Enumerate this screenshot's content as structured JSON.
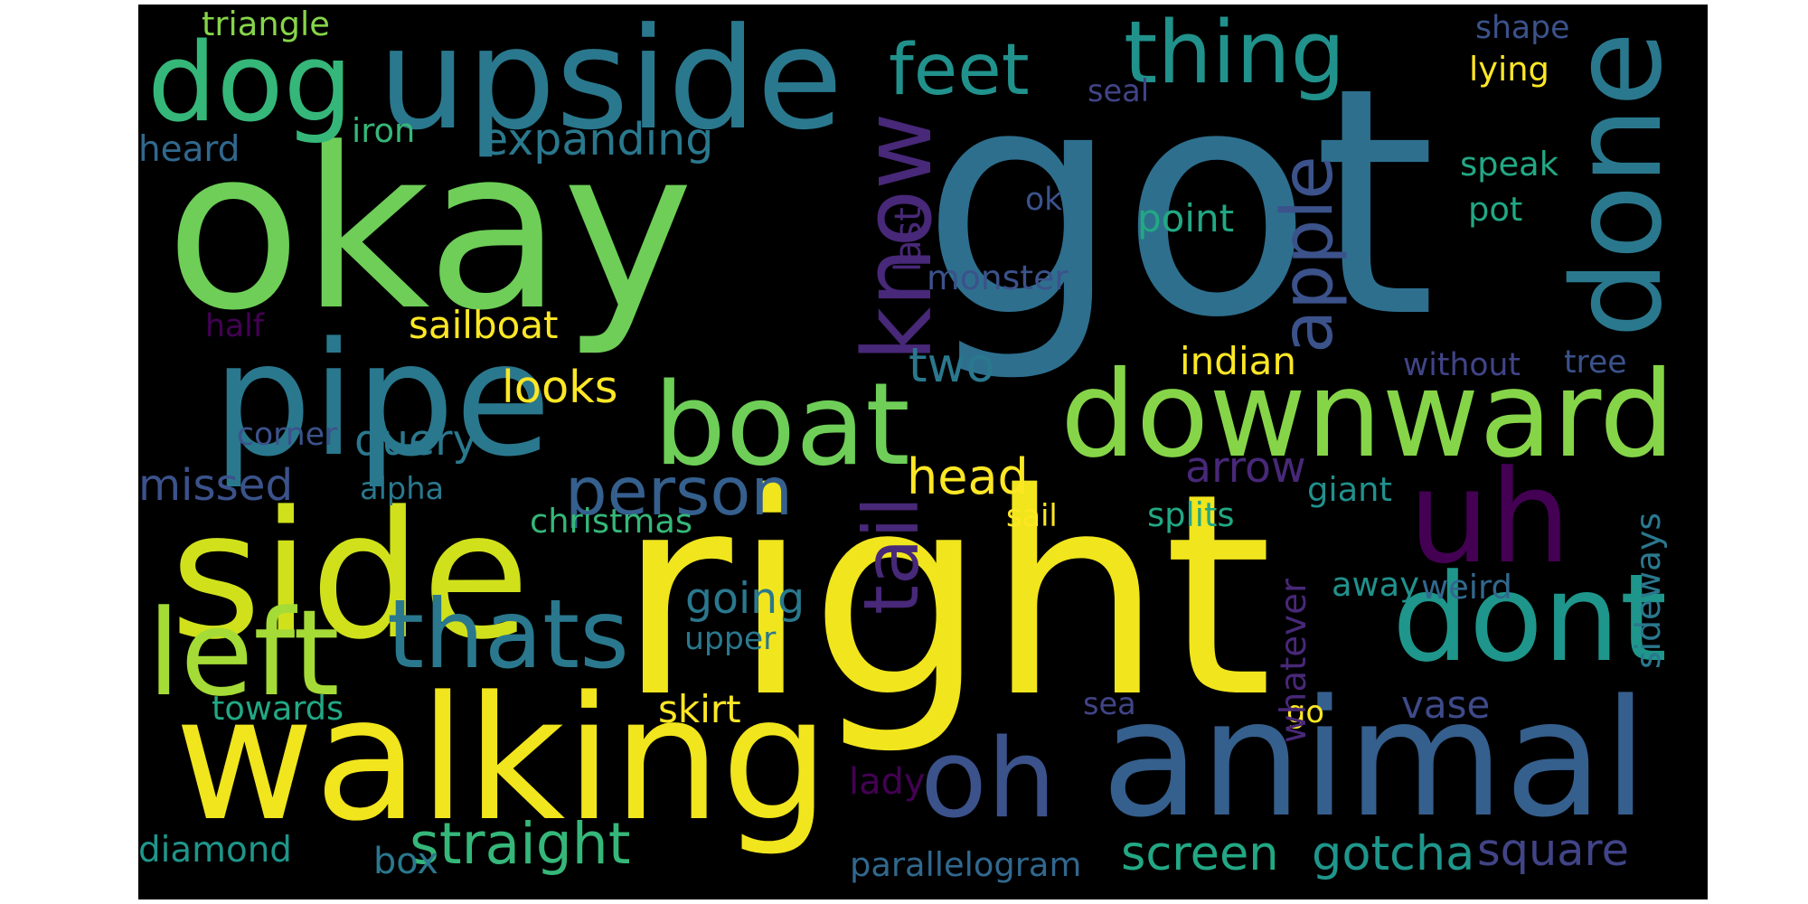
{
  "background_color": "#000000",
  "words": [
    {
      "text": "got",
      "color": "#2e6f8e"
    },
    {
      "text": "right",
      "color": "#f1e51d"
    },
    {
      "text": "okay",
      "color": "#6ece58"
    },
    {
      "text": "upside",
      "color": "#2a788e"
    },
    {
      "text": "side",
      "color": "#d0e11c"
    },
    {
      "text": "walking",
      "color": "#f1e51d"
    },
    {
      "text": "pipe",
      "color": "#2a788e"
    },
    {
      "text": "downward",
      "color": "#86d549"
    },
    {
      "text": "animal",
      "color": "#355f8d"
    },
    {
      "text": "dont",
      "color": "#1f968b"
    },
    {
      "text": "uh",
      "color": "#440154"
    },
    {
      "text": "boat",
      "color": "#6ece58"
    },
    {
      "text": "done",
      "color": "#2a788e"
    },
    {
      "text": "dog",
      "color": "#35b779"
    },
    {
      "text": "know",
      "color": "#482878"
    },
    {
      "text": "left",
      "color": "#a5db36"
    },
    {
      "text": "thats",
      "color": "#2a788e"
    },
    {
      "text": "oh",
      "color": "#3b528b"
    },
    {
      "text": "thing",
      "color": "#21918c"
    },
    {
      "text": "feet",
      "color": "#21918c"
    },
    {
      "text": "apple",
      "color": "#3b528b"
    },
    {
      "text": "tail",
      "color": "#482878"
    },
    {
      "text": "person",
      "color": "#355f8d"
    },
    {
      "text": "head",
      "color": "#fde725"
    },
    {
      "text": "straight",
      "color": "#35b779"
    },
    {
      "text": "gotcha",
      "color": "#1f968b"
    },
    {
      "text": "screen",
      "color": "#22a884"
    },
    {
      "text": "square",
      "color": "#414487"
    },
    {
      "text": "two",
      "color": "#2a788e"
    },
    {
      "text": "expanding",
      "color": "#2a788e"
    },
    {
      "text": "looks",
      "color": "#fde725"
    },
    {
      "text": "query",
      "color": "#2a788e"
    },
    {
      "text": "missed",
      "color": "#3b528b"
    },
    {
      "text": "arrow",
      "color": "#482878"
    },
    {
      "text": "indian",
      "color": "#fde725"
    },
    {
      "text": "point",
      "color": "#22a884"
    },
    {
      "text": "monster",
      "color": "#3b528b"
    },
    {
      "text": "going",
      "color": "#2a788e"
    },
    {
      "text": "sailboat",
      "color": "#fde725"
    },
    {
      "text": "christmas",
      "color": "#35b779"
    },
    {
      "text": "splits",
      "color": "#22a884"
    },
    {
      "text": "giant",
      "color": "#21918c"
    },
    {
      "text": "weird",
      "color": "#31688e"
    },
    {
      "text": "vase",
      "color": "#3e4a89"
    },
    {
      "text": "diamond",
      "color": "#1f968b"
    },
    {
      "text": "parallelogram",
      "color": "#31688e"
    },
    {
      "text": "skirt",
      "color": "#fde725"
    },
    {
      "text": "towards",
      "color": "#22a884"
    },
    {
      "text": "lady",
      "color": "#440154"
    },
    {
      "text": "box",
      "color": "#2a788e"
    },
    {
      "text": "sea",
      "color": "#414487"
    },
    {
      "text": "go",
      "color": "#fde725"
    },
    {
      "text": "away",
      "color": "#21918c"
    },
    {
      "text": "upper",
      "color": "#2a788e"
    },
    {
      "text": "sail",
      "color": "#fde725"
    },
    {
      "text": "alpha",
      "color": "#2a788e"
    },
    {
      "text": "corner",
      "color": "#3b528b"
    },
    {
      "text": "half",
      "color": "#440154"
    },
    {
      "text": "heard",
      "color": "#31688e"
    },
    {
      "text": "iron",
      "color": "#35b779"
    },
    {
      "text": "triangle",
      "color": "#86d549"
    },
    {
      "text": "seal",
      "color": "#414487"
    },
    {
      "text": "shape",
      "color": "#3b528b"
    },
    {
      "text": "lying",
      "color": "#fde725"
    },
    {
      "text": "speak",
      "color": "#22a884"
    },
    {
      "text": "pot",
      "color": "#22a884"
    },
    {
      "text": "ok",
      "color": "#3b528b"
    },
    {
      "text": "last",
      "color": "#482878"
    },
    {
      "text": "without",
      "color": "#414487"
    },
    {
      "text": "tree",
      "color": "#3b528b"
    },
    {
      "text": "sideways",
      "color": "#2a788e"
    },
    {
      "text": "whatever",
      "color": "#482878"
    }
  ]
}
